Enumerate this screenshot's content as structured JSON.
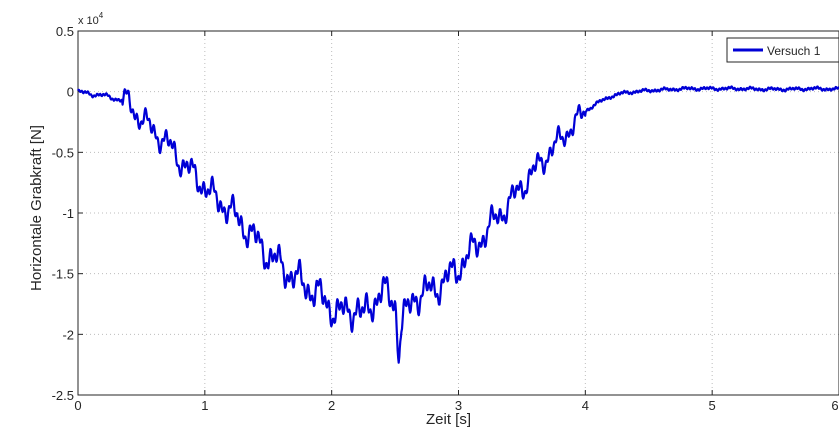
{
  "chart_data": {
    "type": "line",
    "title": "",
    "xlabel": "Zeit [s]",
    "ylabel": "Horizontale Grabkraft [N]",
    "y_exponent_label": "x 10",
    "y_exponent_power": "4",
    "xlim": [
      0,
      6
    ],
    "ylim": [
      -25000,
      5000
    ],
    "x_ticks": [
      0,
      1,
      2,
      3,
      4,
      5,
      6
    ],
    "x_tick_labels": [
      "0",
      "1",
      "2",
      "3",
      "4",
      "5",
      "6"
    ],
    "y_ticks": [
      5000,
      0,
      -5000,
      -10000,
      -15000,
      -20000,
      -25000
    ],
    "y_tick_labels": [
      "0.5",
      "0",
      "-0.5",
      "-1",
      "-1.5",
      "-2",
      "-2.5"
    ],
    "grid": true,
    "grid_style": "dotted",
    "legend_position": "top-right",
    "series": [
      {
        "name": "Versuch 1",
        "color": "#0000d6",
        "x": [
          0.0,
          0.1,
          0.2,
          0.3,
          0.4,
          0.45,
          0.5,
          0.55,
          0.6,
          0.7,
          0.8,
          0.9,
          1.0,
          1.05,
          1.1,
          1.2,
          1.3,
          1.4,
          1.5,
          1.6,
          1.7,
          1.8,
          1.9,
          2.0,
          2.05,
          2.1,
          2.2,
          2.25,
          2.3,
          2.4,
          2.5,
          2.53,
          2.55,
          2.6,
          2.65,
          2.7,
          2.8,
          2.9,
          3.0,
          3.1,
          3.2,
          3.3,
          3.4,
          3.5,
          3.6,
          3.7,
          3.8,
          3.9,
          4.0,
          4.1,
          4.2,
          4.3,
          4.4,
          4.5,
          4.6,
          4.7,
          4.8,
          5.0,
          5.2,
          5.4,
          5.6,
          5.8,
          6.0
        ],
        "y": [
          0,
          -200,
          -300,
          -600,
          -800,
          -1800,
          -2200,
          -2700,
          -3300,
          -4200,
          -5600,
          -6700,
          -7800,
          -8500,
          -8900,
          -9800,
          -11000,
          -12200,
          -13500,
          -14300,
          -15300,
          -16000,
          -16800,
          -17800,
          -18400,
          -18100,
          -17800,
          -18700,
          -17600,
          -16500,
          -17200,
          -21600,
          -19200,
          -18100,
          -16800,
          -16700,
          -16300,
          -15500,
          -14500,
          -13200,
          -11800,
          -10400,
          -9200,
          -7800,
          -6500,
          -5200,
          -4000,
          -2800,
          -1600,
          -900,
          -400,
          -100,
          0,
          100,
          150,
          200,
          250,
          250,
          250,
          200,
          200,
          250,
          200
        ]
      }
    ]
  }
}
